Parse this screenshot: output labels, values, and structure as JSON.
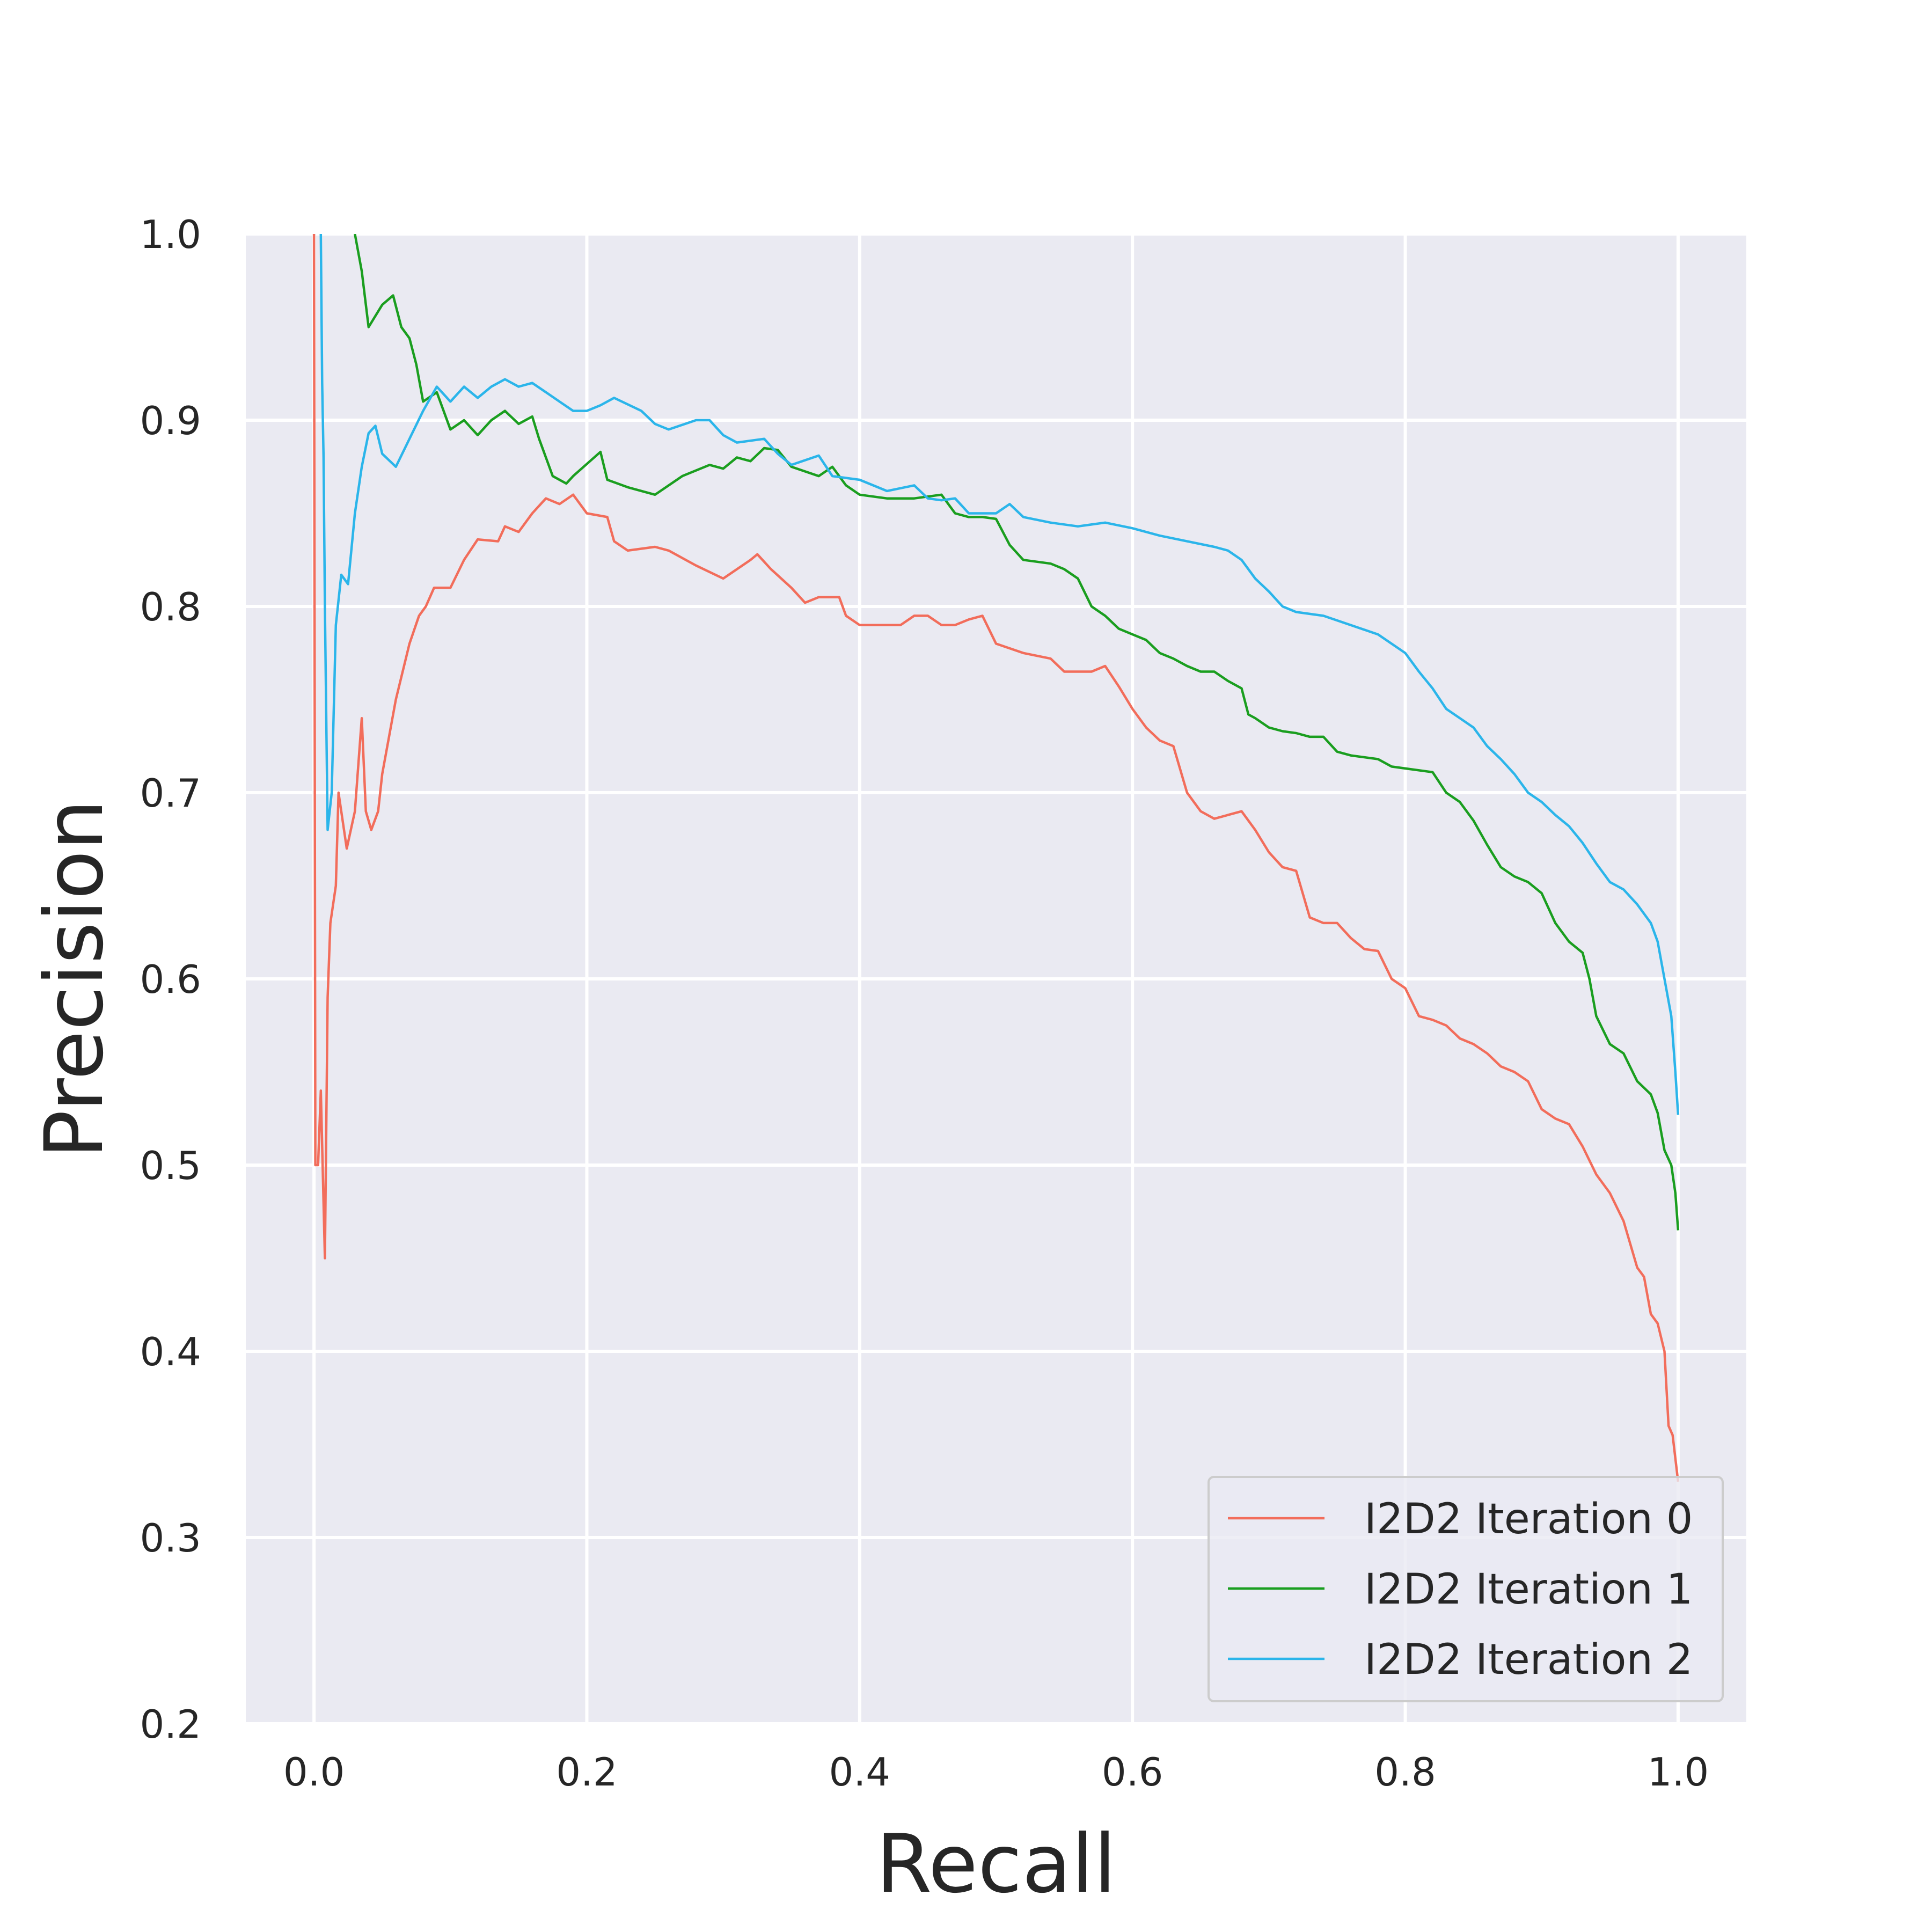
{
  "chart_data": {
    "type": "line",
    "title": "",
    "xlabel": "Recall",
    "ylabel": "Precision",
    "xlim": [
      -0.05,
      1.05
    ],
    "ylim": [
      0.2,
      1.0
    ],
    "xticks": [
      "0.0",
      "0.2",
      "0.4",
      "0.6",
      "0.8",
      "1.0"
    ],
    "yticks": [
      "0.2",
      "0.3",
      "0.4",
      "0.5",
      "0.6",
      "0.7",
      "0.8",
      "0.9",
      "1.0"
    ],
    "grid": true,
    "legend_position": "lower-right",
    "background": "#eaeaf2",
    "series": [
      {
        "name": "I2D2 Iteration 0",
        "color": "#f26d5b",
        "points": [
          [
            0.0,
            1.0
          ],
          [
            0.001,
            0.5
          ],
          [
            0.003,
            0.5
          ],
          [
            0.005,
            0.54
          ],
          [
            0.008,
            0.45
          ],
          [
            0.01,
            0.59
          ],
          [
            0.012,
            0.63
          ],
          [
            0.016,
            0.65
          ],
          [
            0.018,
            0.7
          ],
          [
            0.024,
            0.67
          ],
          [
            0.03,
            0.69
          ],
          [
            0.035,
            0.74
          ],
          [
            0.038,
            0.69
          ],
          [
            0.042,
            0.68
          ],
          [
            0.047,
            0.69
          ],
          [
            0.05,
            0.71
          ],
          [
            0.06,
            0.75
          ],
          [
            0.07,
            0.78
          ],
          [
            0.077,
            0.795
          ],
          [
            0.082,
            0.8
          ],
          [
            0.088,
            0.81
          ],
          [
            0.1,
            0.81
          ],
          [
            0.11,
            0.825
          ],
          [
            0.12,
            0.836
          ],
          [
            0.135,
            0.835
          ],
          [
            0.14,
            0.843
          ],
          [
            0.15,
            0.84
          ],
          [
            0.16,
            0.85
          ],
          [
            0.17,
            0.858
          ],
          [
            0.18,
            0.855
          ],
          [
            0.19,
            0.86
          ],
          [
            0.2,
            0.85
          ],
          [
            0.215,
            0.848
          ],
          [
            0.22,
            0.835
          ],
          [
            0.23,
            0.83
          ],
          [
            0.25,
            0.832
          ],
          [
            0.26,
            0.83
          ],
          [
            0.28,
            0.822
          ],
          [
            0.3,
            0.815
          ],
          [
            0.32,
            0.825
          ],
          [
            0.325,
            0.828
          ],
          [
            0.335,
            0.82
          ],
          [
            0.35,
            0.81
          ],
          [
            0.36,
            0.802
          ],
          [
            0.37,
            0.805
          ],
          [
            0.385,
            0.805
          ],
          [
            0.39,
            0.795
          ],
          [
            0.4,
            0.79
          ],
          [
            0.43,
            0.79
          ],
          [
            0.44,
            0.795
          ],
          [
            0.45,
            0.795
          ],
          [
            0.46,
            0.79
          ],
          [
            0.47,
            0.79
          ],
          [
            0.48,
            0.793
          ],
          [
            0.49,
            0.795
          ],
          [
            0.5,
            0.78
          ],
          [
            0.52,
            0.775
          ],
          [
            0.54,
            0.772
          ],
          [
            0.55,
            0.765
          ],
          [
            0.57,
            0.765
          ],
          [
            0.58,
            0.768
          ],
          [
            0.59,
            0.757
          ],
          [
            0.6,
            0.745
          ],
          [
            0.61,
            0.735
          ],
          [
            0.62,
            0.728
          ],
          [
            0.63,
            0.725
          ],
          [
            0.64,
            0.7
          ],
          [
            0.65,
            0.69
          ],
          [
            0.66,
            0.686
          ],
          [
            0.67,
            0.688
          ],
          [
            0.68,
            0.69
          ],
          [
            0.69,
            0.68
          ],
          [
            0.7,
            0.668
          ],
          [
            0.71,
            0.66
          ],
          [
            0.72,
            0.658
          ],
          [
            0.73,
            0.633
          ],
          [
            0.74,
            0.63
          ],
          [
            0.75,
            0.63
          ],
          [
            0.76,
            0.622
          ],
          [
            0.77,
            0.616
          ],
          [
            0.78,
            0.615
          ],
          [
            0.79,
            0.6
          ],
          [
            0.8,
            0.595
          ],
          [
            0.81,
            0.58
          ],
          [
            0.82,
            0.578
          ],
          [
            0.83,
            0.575
          ],
          [
            0.84,
            0.568
          ],
          [
            0.85,
            0.565
          ],
          [
            0.86,
            0.56
          ],
          [
            0.87,
            0.553
          ],
          [
            0.88,
            0.55
          ],
          [
            0.89,
            0.545
          ],
          [
            0.9,
            0.53
          ],
          [
            0.91,
            0.525
          ],
          [
            0.92,
            0.522
          ],
          [
            0.93,
            0.51
          ],
          [
            0.94,
            0.495
          ],
          [
            0.95,
            0.485
          ],
          [
            0.96,
            0.47
          ],
          [
            0.97,
            0.445
          ],
          [
            0.975,
            0.44
          ],
          [
            0.98,
            0.42
          ],
          [
            0.985,
            0.415
          ],
          [
            0.99,
            0.4
          ],
          [
            0.993,
            0.36
          ],
          [
            0.996,
            0.355
          ],
          [
            1.0,
            0.33
          ]
        ]
      },
      {
        "name": "I2D2 Iteration 1",
        "color": "#1a9e1f",
        "points": [
          [
            0.03,
            1.0
          ],
          [
            0.035,
            0.98
          ],
          [
            0.04,
            0.95
          ],
          [
            0.05,
            0.962
          ],
          [
            0.058,
            0.967
          ],
          [
            0.064,
            0.95
          ],
          [
            0.07,
            0.944
          ],
          [
            0.075,
            0.93
          ],
          [
            0.08,
            0.91
          ],
          [
            0.09,
            0.915
          ],
          [
            0.1,
            0.895
          ],
          [
            0.11,
            0.9
          ],
          [
            0.12,
            0.892
          ],
          [
            0.13,
            0.9
          ],
          [
            0.14,
            0.905
          ],
          [
            0.15,
            0.898
          ],
          [
            0.16,
            0.902
          ],
          [
            0.165,
            0.89
          ],
          [
            0.175,
            0.87
          ],
          [
            0.185,
            0.866
          ],
          [
            0.19,
            0.87
          ],
          [
            0.21,
            0.883
          ],
          [
            0.215,
            0.868
          ],
          [
            0.23,
            0.864
          ],
          [
            0.25,
            0.86
          ],
          [
            0.27,
            0.87
          ],
          [
            0.29,
            0.876
          ],
          [
            0.3,
            0.874
          ],
          [
            0.31,
            0.88
          ],
          [
            0.32,
            0.878
          ],
          [
            0.33,
            0.885
          ],
          [
            0.34,
            0.884
          ],
          [
            0.35,
            0.875
          ],
          [
            0.37,
            0.87
          ],
          [
            0.38,
            0.875
          ],
          [
            0.39,
            0.865
          ],
          [
            0.4,
            0.86
          ],
          [
            0.42,
            0.858
          ],
          [
            0.44,
            0.858
          ],
          [
            0.46,
            0.86
          ],
          [
            0.47,
            0.85
          ],
          [
            0.48,
            0.848
          ],
          [
            0.49,
            0.848
          ],
          [
            0.5,
            0.847
          ],
          [
            0.51,
            0.833
          ],
          [
            0.52,
            0.825
          ],
          [
            0.54,
            0.823
          ],
          [
            0.55,
            0.82
          ],
          [
            0.56,
            0.815
          ],
          [
            0.57,
            0.8
          ],
          [
            0.58,
            0.795
          ],
          [
            0.59,
            0.788
          ],
          [
            0.6,
            0.785
          ],
          [
            0.61,
            0.782
          ],
          [
            0.62,
            0.775
          ],
          [
            0.63,
            0.772
          ],
          [
            0.64,
            0.768
          ],
          [
            0.65,
            0.765
          ],
          [
            0.66,
            0.765
          ],
          [
            0.67,
            0.76
          ],
          [
            0.68,
            0.756
          ],
          [
            0.685,
            0.742
          ],
          [
            0.69,
            0.74
          ],
          [
            0.7,
            0.735
          ],
          [
            0.71,
            0.733
          ],
          [
            0.72,
            0.732
          ],
          [
            0.73,
            0.73
          ],
          [
            0.74,
            0.73
          ],
          [
            0.75,
            0.722
          ],
          [
            0.76,
            0.72
          ],
          [
            0.78,
            0.718
          ],
          [
            0.79,
            0.714
          ],
          [
            0.8,
            0.713
          ],
          [
            0.82,
            0.711
          ],
          [
            0.83,
            0.7
          ],
          [
            0.84,
            0.695
          ],
          [
            0.85,
            0.685
          ],
          [
            0.86,
            0.672
          ],
          [
            0.87,
            0.66
          ],
          [
            0.88,
            0.655
          ],
          [
            0.89,
            0.652
          ],
          [
            0.9,
            0.646
          ],
          [
            0.91,
            0.63
          ],
          [
            0.92,
            0.62
          ],
          [
            0.93,
            0.614
          ],
          [
            0.935,
            0.6
          ],
          [
            0.94,
            0.58
          ],
          [
            0.95,
            0.565
          ],
          [
            0.96,
            0.56
          ],
          [
            0.97,
            0.545
          ],
          [
            0.98,
            0.538
          ],
          [
            0.985,
            0.528
          ],
          [
            0.99,
            0.508
          ],
          [
            0.995,
            0.5
          ],
          [
            0.998,
            0.485
          ],
          [
            1.0,
            0.465
          ]
        ]
      },
      {
        "name": "I2D2 Iteration 2",
        "color": "#2bb5ea",
        "points": [
          [
            0.005,
            1.0
          ],
          [
            0.006,
            0.92
          ],
          [
            0.007,
            0.88
          ],
          [
            0.008,
            0.8
          ],
          [
            0.01,
            0.68
          ],
          [
            0.013,
            0.7
          ],
          [
            0.016,
            0.79
          ],
          [
            0.02,
            0.817
          ],
          [
            0.025,
            0.812
          ],
          [
            0.03,
            0.85
          ],
          [
            0.035,
            0.875
          ],
          [
            0.04,
            0.893
          ],
          [
            0.045,
            0.897
          ],
          [
            0.05,
            0.882
          ],
          [
            0.06,
            0.875
          ],
          [
            0.07,
            0.89
          ],
          [
            0.08,
            0.905
          ],
          [
            0.09,
            0.918
          ],
          [
            0.1,
            0.91
          ],
          [
            0.11,
            0.918
          ],
          [
            0.12,
            0.912
          ],
          [
            0.13,
            0.918
          ],
          [
            0.14,
            0.922
          ],
          [
            0.15,
            0.918
          ],
          [
            0.16,
            0.92
          ],
          [
            0.17,
            0.915
          ],
          [
            0.18,
            0.91
          ],
          [
            0.19,
            0.905
          ],
          [
            0.2,
            0.905
          ],
          [
            0.21,
            0.908
          ],
          [
            0.22,
            0.912
          ],
          [
            0.24,
            0.905
          ],
          [
            0.25,
            0.898
          ],
          [
            0.26,
            0.895
          ],
          [
            0.28,
            0.9
          ],
          [
            0.29,
            0.9
          ],
          [
            0.3,
            0.892
          ],
          [
            0.31,
            0.888
          ],
          [
            0.33,
            0.89
          ],
          [
            0.34,
            0.882
          ],
          [
            0.35,
            0.876
          ],
          [
            0.37,
            0.881
          ],
          [
            0.38,
            0.87
          ],
          [
            0.4,
            0.868
          ],
          [
            0.42,
            0.862
          ],
          [
            0.44,
            0.865
          ],
          [
            0.45,
            0.858
          ],
          [
            0.46,
            0.857
          ],
          [
            0.47,
            0.858
          ],
          [
            0.48,
            0.85
          ],
          [
            0.5,
            0.85
          ],
          [
            0.51,
            0.855
          ],
          [
            0.52,
            0.848
          ],
          [
            0.54,
            0.845
          ],
          [
            0.56,
            0.843
          ],
          [
            0.58,
            0.845
          ],
          [
            0.6,
            0.842
          ],
          [
            0.62,
            0.838
          ],
          [
            0.64,
            0.835
          ],
          [
            0.66,
            0.832
          ],
          [
            0.67,
            0.83
          ],
          [
            0.68,
            0.825
          ],
          [
            0.69,
            0.815
          ],
          [
            0.7,
            0.808
          ],
          [
            0.71,
            0.8
          ],
          [
            0.72,
            0.797
          ],
          [
            0.74,
            0.795
          ],
          [
            0.76,
            0.79
          ],
          [
            0.78,
            0.785
          ],
          [
            0.8,
            0.775
          ],
          [
            0.81,
            0.765
          ],
          [
            0.82,
            0.756
          ],
          [
            0.83,
            0.745
          ],
          [
            0.84,
            0.74
          ],
          [
            0.85,
            0.735
          ],
          [
            0.86,
            0.725
          ],
          [
            0.87,
            0.718
          ],
          [
            0.88,
            0.71
          ],
          [
            0.89,
            0.7
          ],
          [
            0.9,
            0.695
          ],
          [
            0.91,
            0.688
          ],
          [
            0.92,
            0.682
          ],
          [
            0.93,
            0.673
          ],
          [
            0.94,
            0.662
          ],
          [
            0.95,
            0.652
          ],
          [
            0.96,
            0.648
          ],
          [
            0.97,
            0.64
          ],
          [
            0.98,
            0.63
          ],
          [
            0.985,
            0.62
          ],
          [
            0.99,
            0.6
          ],
          [
            0.995,
            0.58
          ],
          [
            0.998,
            0.55
          ],
          [
            1.0,
            0.527
          ]
        ]
      }
    ]
  }
}
